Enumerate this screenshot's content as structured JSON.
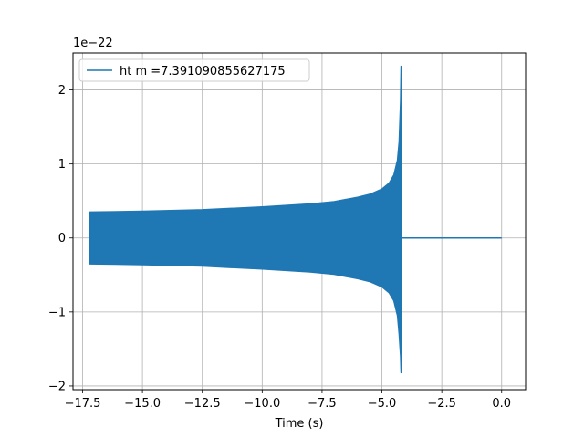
{
  "chart_data": {
    "type": "line",
    "title": "",
    "xlabel": "Time (s)",
    "ylabel": "",
    "y_offset_text": "1e−22",
    "xlim": [
      -17.9,
      1.0
    ],
    "ylim": [
      -2.05,
      2.5
    ],
    "x_ticks": [
      -17.5,
      -15.0,
      -12.5,
      -10.0,
      -7.5,
      -5.0,
      -2.5,
      0.0
    ],
    "x_tick_labels": [
      "−17.5",
      "−15.0",
      "−12.5",
      "−10.0",
      "−7.5",
      "−5.0",
      "−2.5",
      "0.0"
    ],
    "y_ticks": [
      -2,
      -1,
      0,
      1,
      2
    ],
    "y_tick_labels": [
      "−2",
      "−1",
      "0",
      "1",
      "2"
    ],
    "grid": true,
    "legend_position": "upper-left",
    "series": [
      {
        "name": "ht m =7.391090855627175",
        "color": "#1f77b4",
        "envelope": {
          "x": [
            -17.2,
            -15.0,
            -12.5,
            -10.0,
            -8.0,
            -7.0,
            -6.0,
            -5.5,
            -5.0,
            -4.7,
            -4.5,
            -4.35,
            -4.28,
            -4.22,
            -4.2
          ],
          "upper": [
            0.35,
            0.36,
            0.38,
            0.42,
            0.46,
            0.49,
            0.55,
            0.59,
            0.66,
            0.74,
            0.85,
            1.05,
            1.3,
            1.85,
            2.32
          ],
          "lower": [
            -0.35,
            -0.36,
            -0.38,
            -0.42,
            -0.46,
            -0.49,
            -0.55,
            -0.59,
            -0.66,
            -0.74,
            -0.85,
            -1.05,
            -1.3,
            -1.6,
            -1.82
          ]
        },
        "flat_segment": {
          "x": [
            -4.18,
            0.0
          ],
          "y": 0.0
        }
      }
    ]
  }
}
